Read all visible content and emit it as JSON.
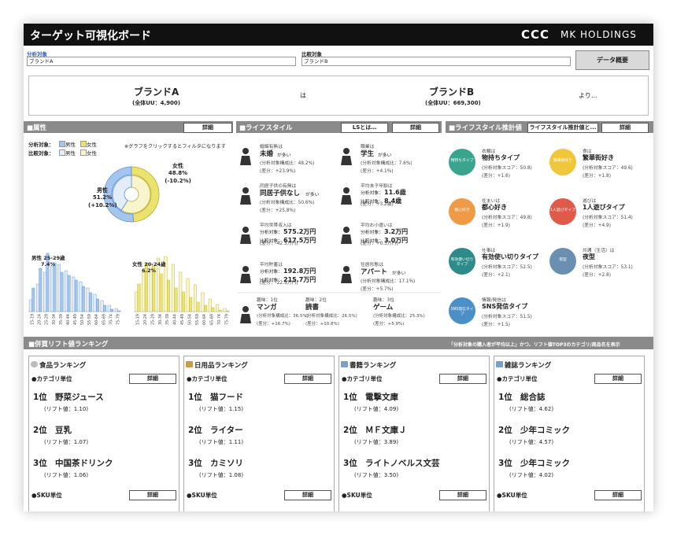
{
  "header": {
    "title": "ターゲット可視化ボード",
    "logo_mark": "CCC",
    "logo_text": "MK HOLDINGS"
  },
  "filters": {
    "target_label": "分析対象",
    "target_value": "ブランドA",
    "compare_label": "比較対象",
    "compare_value": "ブランドB",
    "overview_button": "データ概要"
  },
  "summary": {
    "target_name": "ブランドA",
    "target_uu": "(全体UU：4,900)",
    "particle": "は",
    "compare_name": "ブランドB",
    "compare_uu": "(全体UU：669,300)",
    "suffix": "より…"
  },
  "attributes": {
    "title": "■属性",
    "button": "詳細",
    "legend": {
      "target_label": "分析対象：",
      "compare_label": "比較対象：",
      "male": "男性",
      "female": "女性"
    },
    "note": "※グラフをクリックするとフィルタになります",
    "gender_chart": {
      "type": "pie",
      "categories": [
        "女性",
        "男性"
      ],
      "target": {
        "values": [
          48.8,
          51.2
        ],
        "value_labels": [
          "48.8%",
          "51.2%"
        ],
        "colors": [
          "#ece36f",
          "#a3c5ee"
        ]
      },
      "compare": {
        "values": [
          59.0,
          41.0
        ],
        "colors": [
          "#f8f4cc",
          "#e2edf9"
        ]
      },
      "diff_labels": [
        "(-10.2%)",
        "(+10.2%)"
      ]
    },
    "age_chart": {
      "type": "bar",
      "ylim": [
        0,
        8
      ],
      "male": {
        "label": "男性 25-29歳",
        "peak_label": "7.4%",
        "peak_index": 2,
        "categories": [
          "15-19",
          "20-24",
          "25-29",
          "30-34",
          "35-39",
          "40-44",
          "45-49",
          "50-54",
          "55-59",
          "60-64",
          "65-69",
          "70-74",
          "75-79"
        ],
        "target": [
          3.0,
          5.5,
          7.4,
          6.2,
          5.0,
          4.6,
          4.0,
          3.2,
          2.4,
          1.6,
          0.8,
          0.3,
          0.1
        ],
        "compare": [
          1.5,
          3.5,
          5.0,
          5.8,
          6.0,
          5.2,
          4.4,
          3.8,
          3.0,
          2.2,
          1.4,
          0.8,
          0.4
        ],
        "colors": {
          "target": "#a3c5ee",
          "compare": "#e2edf9",
          "stroke": "#5b8ed6"
        }
      },
      "female": {
        "label": "女性 20-24歳",
        "peak_label": "6.2%",
        "peak_index": 1,
        "categories": [
          "15-19",
          "20-24",
          "25-29",
          "30-34",
          "35-39",
          "40-44",
          "45-49",
          "50-54",
          "55-59",
          "60-64",
          "65-69",
          "70-74",
          "75-79"
        ],
        "target": [
          3.5,
          6.2,
          5.8,
          4.8,
          4.0,
          3.0,
          2.5,
          1.8,
          1.2,
          0.8,
          0.5,
          0.2,
          0.1
        ],
        "compare": [
          2.5,
          5.0,
          6.0,
          6.8,
          7.0,
          6.0,
          5.0,
          4.2,
          3.4,
          2.4,
          1.6,
          0.9,
          0.4
        ],
        "colors": {
          "target": "#ece36f",
          "compare": "#f8f4cc",
          "stroke": "#b8ad2c"
        }
      }
    }
  },
  "lifestyle": {
    "title": "■ライフスタイル",
    "about_button": "LSとは…",
    "button": "詳細",
    "items": [
      {
        "label": "婚姻有無は",
        "value": "未婚",
        "suffix": "が多い",
        "notes": [
          "(分析対象構成比：48.2%)",
          "(差分：+23.9%)"
        ]
      },
      {
        "label": "職業は",
        "value": "学生",
        "suffix": "が多い",
        "notes": [
          "(分析対象構成比：7.6%)",
          "(差分：+4.1%)"
        ]
      },
      {
        "label": "同居子供の有無は",
        "value": "同居子供なし",
        "suffix": "が多い",
        "notes": [
          "(分析対象構成比：50.6%)",
          "(差分：+25.8%)"
        ]
      },
      {
        "label": "平均末子年齢は",
        "rows": [
          [
            "分析対象：",
            "11.6歳"
          ],
          [
            "比較対象：",
            "8.4歳"
          ]
        ],
        "notes": [
          "(差分：+3.2歳)"
        ]
      },
      {
        "label": "平均世帯収入は",
        "rows": [
          [
            "分析対象：",
            "575.2万円"
          ],
          [
            "比較対象：",
            "617.5万円"
          ]
        ],
        "notes": [
          "(差分：-42.3万円)"
        ]
      },
      {
        "label": "平均お小遣いは",
        "rows": [
          [
            "分析対象：",
            "3.2万円"
          ],
          [
            "比較対象：",
            "3.0万円"
          ]
        ],
        "notes": [
          "(差分：+0.3万円)"
        ]
      },
      {
        "label": "平均貯蓄は",
        "rows": [
          [
            "分析対象：",
            "192.8万円"
          ],
          [
            "比較対象：",
            "215.7万円"
          ]
        ],
        "notes": [
          "(差分：-22.9万円)"
        ]
      },
      {
        "label": "住居形態は",
        "value": "アパート",
        "suffix": "が多い",
        "notes": [
          "(分析対象構成比：17.1%)",
          "(差分：+5.7%)"
        ]
      }
    ],
    "hobbies": [
      {
        "label": "趣味：1位",
        "value": "マンガ",
        "notes": [
          "(分析対象構成比：36.5%)",
          "(差分：+16.7%)"
        ]
      },
      {
        "label": "趣味：2位",
        "value": "読書",
        "notes": [
          "(分析対象構成比：26.5%)",
          "(差分：+10.8%)"
        ]
      },
      {
        "label": "趣味：3位",
        "value": "ゲーム",
        "notes": [
          "(分析対象構成比：25.3%)",
          "(差分：+5.9%)"
        ]
      }
    ]
  },
  "estimates": {
    "title": "■ライフスタイル推計値",
    "about_button": "ライフスタイル推計値と...",
    "button": "詳細",
    "items": [
      {
        "label": "衣類は",
        "value": "物持ちタイプ",
        "icon_text": "物持ちタイプ",
        "color": "#3aa58f",
        "notes": [
          "(分析対象スコア：50.8)",
          "(差分：+1.6)"
        ]
      },
      {
        "label": "食は",
        "value": "繁華街好き",
        "icon_text": "繁華街好き",
        "color": "#f0c63c",
        "notes": [
          "(分析対象スコア：49.6)",
          "(差分：+1.8)"
        ]
      },
      {
        "label": "住まいは",
        "value": "都心好き",
        "icon_text": "都心好き",
        "color": "#ef9a45",
        "notes": [
          "(分析対象スコア：49.8)",
          "(差分：+1.9)"
        ]
      },
      {
        "label": "遊びは",
        "value": "1人遊びタイプ",
        "icon_text": "1人遊びタイプ",
        "color": "#e05a4a",
        "notes": [
          "(分析対象スコア：51.4)",
          "(差分：+4.9)"
        ]
      },
      {
        "label": "仕事は",
        "value": "有効使い切りタイプ",
        "icon_text": "有効使い切りタイプ",
        "color": "#2f8a8a",
        "notes": [
          "(分析対象スコア：52.5)",
          "(差分：+2.1)"
        ]
      },
      {
        "label": "共通（生活）は",
        "value": "夜型",
        "icon_text": "夜型",
        "color": "#6a8fb0",
        "notes": [
          "(分析対象スコア：53.1)",
          "(差分：+2.8)"
        ]
      },
      {
        "label": "情報/発信は",
        "value": "SNS発信タイプ",
        "icon_text": "SNS発信タイプ",
        "color": "#4a8fc8",
        "notes": [
          "(分析対象スコア：51.5)",
          "(差分：+1.5)"
        ]
      }
    ]
  },
  "ranking": {
    "title": "■併買リフト値ランキング",
    "note": "「分析対象の購入者が平均以上」かつ、リフト値TOP3のカテゴリ/商品名を表示",
    "cards": [
      {
        "title": "食品ランキング",
        "category_label": "●カテゴリ単位",
        "sku_label": "●SKU単位",
        "button": "詳細",
        "items": [
          {
            "rank": "1位",
            "name": "野菜ジュース",
            "lift": "(リフト値：1.10)"
          },
          {
            "rank": "2位",
            "name": "豆乳",
            "lift": "(リフト値：1.07)"
          },
          {
            "rank": "3位",
            "name": "中国茶ドリンク",
            "lift": "(リフト値：1.06)"
          }
        ]
      },
      {
        "title": "日用品ランキング",
        "category_label": "●カテゴリ単位",
        "sku_label": "●SKU単位",
        "button": "詳細",
        "items": [
          {
            "rank": "1位",
            "name": "猫フード",
            "lift": "(リフト値：1.15)"
          },
          {
            "rank": "2位",
            "name": "ライター",
            "lift": "(リフト値：1.11)"
          },
          {
            "rank": "3位",
            "name": "カミソリ",
            "lift": "(リフト値：1.08)"
          }
        ]
      },
      {
        "title": "書籍ランキング",
        "category_label": "●カテゴリ単位",
        "sku_label": "●SKU単位",
        "button": "詳細",
        "items": [
          {
            "rank": "1位",
            "name": "電撃文庫",
            "lift": "(リフト値：4.09)"
          },
          {
            "rank": "2位",
            "name": "ＭＦ文庫Ｊ",
            "lift": "(リフト値：3.89)"
          },
          {
            "rank": "3位",
            "name": "ライトノベルス文芸",
            "lift": "(リフト値：3.50)"
          }
        ]
      },
      {
        "title": "雑誌ランキング",
        "category_label": "●カテゴリ単位",
        "sku_label": "●SKU単位",
        "button": "詳細",
        "items": [
          {
            "rank": "1位",
            "name": "総合誌",
            "lift": "(リフト値：4.62)"
          },
          {
            "rank": "2位",
            "name": "少年コミック",
            "lift": "(リフト値：4.57)"
          },
          {
            "rank": "3位",
            "name": "少年コミック",
            "lift": "(リフト値：4.02)"
          }
        ]
      }
    ]
  }
}
